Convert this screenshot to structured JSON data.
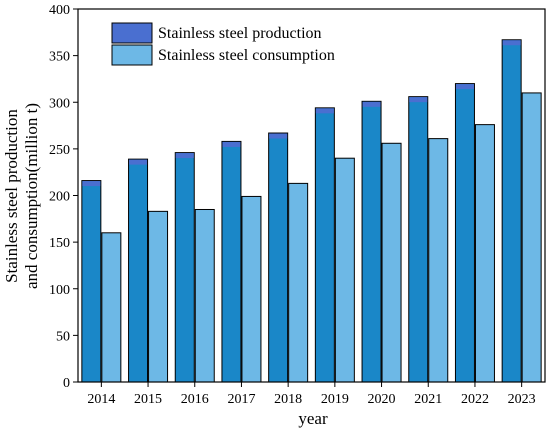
{
  "chart_data": {
    "type": "bar",
    "categories": [
      "2014",
      "2015",
      "2016",
      "2017",
      "2018",
      "2019",
      "2020",
      "2021",
      "2022",
      "2023"
    ],
    "series": [
      {
        "name": "Stainless steel production",
        "values": [
          216,
          239,
          246,
          258,
          267,
          294,
          301,
          306,
          320,
          367
        ],
        "color": "#1a87c8",
        "top_color": "#4a6fd0"
      },
      {
        "name": "Stainless steel consumption",
        "values": [
          160,
          183,
          185,
          199,
          213,
          240,
          256,
          261,
          276,
          310
        ],
        "color": "#6db8e6"
      }
    ],
    "xlabel": "year",
    "ylabel_line1": "Stainless steel production",
    "ylabel_line2": "and consumption(million t)",
    "ylim": [
      0,
      400
    ],
    "yticks": [
      0,
      50,
      100,
      150,
      200,
      250,
      300,
      350,
      400
    ],
    "grid": false,
    "legend_position": "top-left"
  }
}
